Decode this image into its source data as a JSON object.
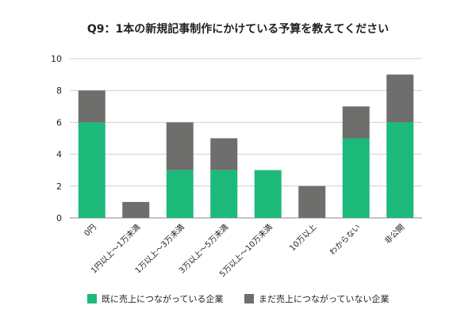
{
  "chart_data": {
    "type": "bar",
    "stacked": true,
    "title": "Q9：1本の新規記事制作にかけている予算を教えてください",
    "xlabel": "",
    "ylabel": "",
    "ylim": [
      0,
      10
    ],
    "yticks": [
      0,
      2,
      4,
      6,
      8,
      10
    ],
    "grid": true,
    "legend_position": "bottom",
    "categories": [
      "0円",
      "1円以上〜1万未満",
      "1万以上〜3万未満",
      "3万以上〜5万未満",
      "5万以上〜10万未満",
      "10万以上",
      "わからない",
      "非公開"
    ],
    "series": [
      {
        "name": "既に売上につながっている企業",
        "color": "#1db97b",
        "values": [
          6,
          0,
          3,
          3,
          3,
          0,
          5,
          6
        ]
      },
      {
        "name": "まだ売上につながっていない企業",
        "color": "#6e6e6c",
        "values": [
          2,
          1,
          3,
          2,
          0,
          2,
          2,
          3
        ]
      }
    ]
  }
}
